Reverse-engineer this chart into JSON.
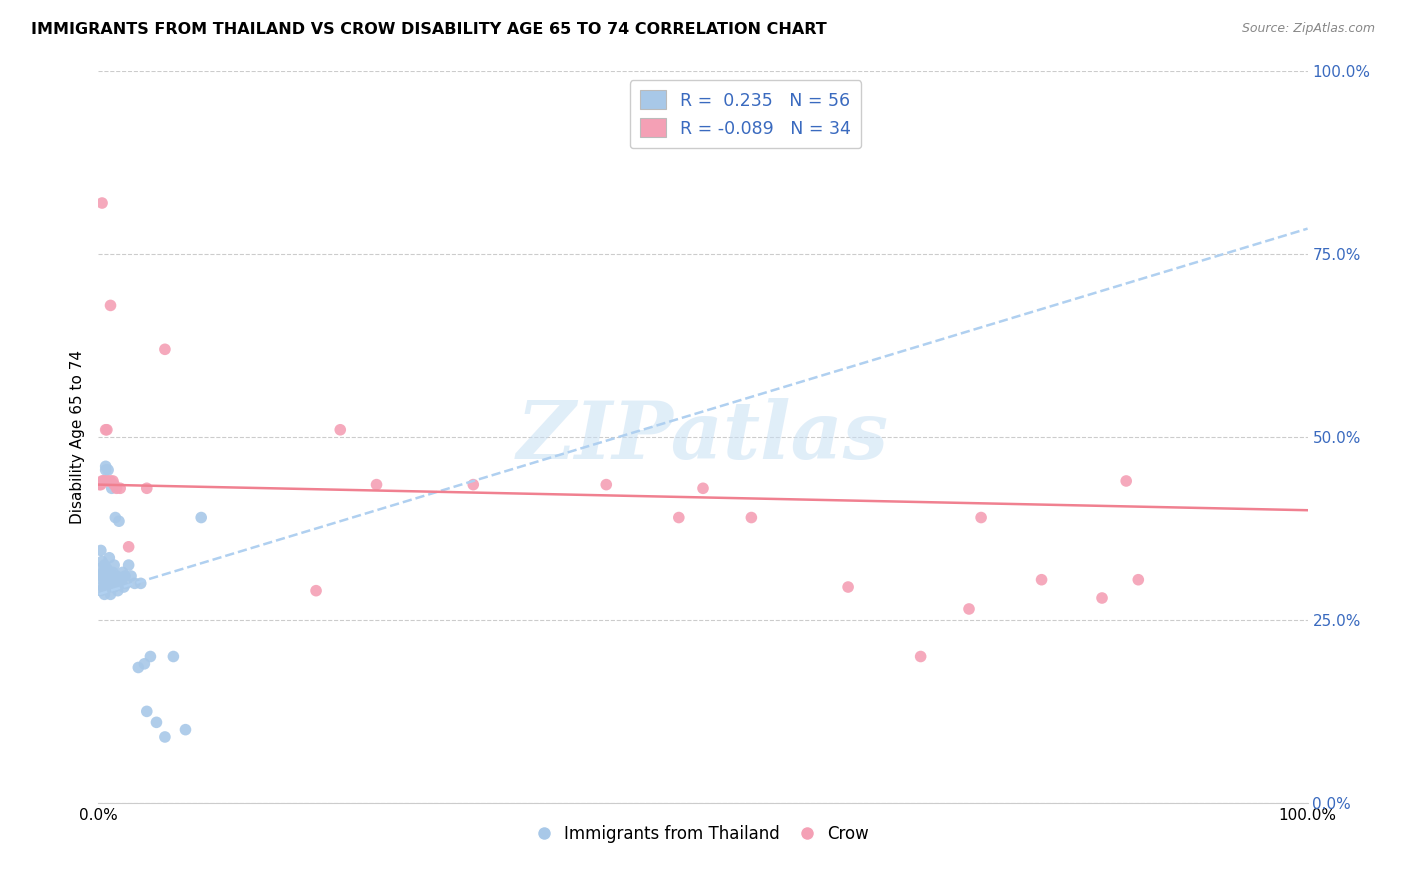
{
  "title": "IMMIGRANTS FROM THAILAND VS CROW DISABILITY AGE 65 TO 74 CORRELATION CHART",
  "source": "Source: ZipAtlas.com",
  "ylabel": "Disability Age 65 to 74",
  "legend_label1": "Immigrants from Thailand",
  "legend_label2": "Crow",
  "R1": 0.235,
  "N1": 56,
  "R2": -0.089,
  "N2": 34,
  "color_blue": "#a8c8e8",
  "color_pink": "#f4a0b5",
  "color_blue_text": "#3a6abf",
  "color_pink_line": "#f08090",
  "color_blue_line": "#b0d0f0",
  "watermark_text": "ZIPatlas",
  "blue_scatter_x": [
    0.001,
    0.002,
    0.002,
    0.003,
    0.003,
    0.003,
    0.004,
    0.004,
    0.005,
    0.005,
    0.005,
    0.005,
    0.006,
    0.006,
    0.006,
    0.007,
    0.007,
    0.007,
    0.008,
    0.008,
    0.009,
    0.009,
    0.009,
    0.01,
    0.01,
    0.01,
    0.011,
    0.011,
    0.012,
    0.012,
    0.013,
    0.013,
    0.014,
    0.015,
    0.015,
    0.016,
    0.017,
    0.018,
    0.019,
    0.02,
    0.021,
    0.022,
    0.023,
    0.025,
    0.027,
    0.03,
    0.033,
    0.035,
    0.038,
    0.04,
    0.043,
    0.048,
    0.055,
    0.062,
    0.072,
    0.085
  ],
  "blue_scatter_y": [
    0.32,
    0.29,
    0.345,
    0.305,
    0.33,
    0.31,
    0.295,
    0.315,
    0.3,
    0.325,
    0.31,
    0.285,
    0.455,
    0.44,
    0.46,
    0.305,
    0.32,
    0.3,
    0.455,
    0.31,
    0.335,
    0.295,
    0.31,
    0.3,
    0.285,
    0.315,
    0.43,
    0.305,
    0.3,
    0.315,
    0.295,
    0.325,
    0.39,
    0.305,
    0.31,
    0.29,
    0.385,
    0.305,
    0.3,
    0.315,
    0.295,
    0.31,
    0.3,
    0.325,
    0.31,
    0.3,
    0.185,
    0.3,
    0.19,
    0.125,
    0.2,
    0.11,
    0.09,
    0.2,
    0.1,
    0.39
  ],
  "pink_scatter_x": [
    0.001,
    0.002,
    0.003,
    0.003,
    0.004,
    0.005,
    0.006,
    0.007,
    0.008,
    0.01,
    0.012,
    0.015,
    0.018,
    0.04,
    0.055,
    0.2,
    0.23,
    0.31,
    0.42,
    0.5,
    0.54,
    0.62,
    0.68,
    0.72,
    0.78,
    0.83,
    0.86,
    0.01,
    0.013,
    0.025,
    0.18,
    0.48,
    0.73,
    0.85
  ],
  "pink_scatter_y": [
    0.435,
    0.435,
    0.44,
    0.82,
    0.44,
    0.44,
    0.51,
    0.51,
    0.44,
    0.44,
    0.44,
    0.43,
    0.43,
    0.43,
    0.62,
    0.51,
    0.435,
    0.435,
    0.435,
    0.43,
    0.39,
    0.295,
    0.2,
    0.265,
    0.305,
    0.28,
    0.305,
    0.68,
    0.435,
    0.35,
    0.29,
    0.39,
    0.39,
    0.44
  ],
  "blue_trendline_x": [
    0.0,
    1.0
  ],
  "blue_trendline_y": [
    0.285,
    0.785
  ],
  "pink_trendline_x": [
    0.0,
    1.0
  ],
  "pink_trendline_y": [
    0.435,
    0.4
  ],
  "xlim": [
    0,
    1.0
  ],
  "ylim": [
    0,
    1.0
  ],
  "yticks": [
    0.0,
    0.25,
    0.5,
    0.75,
    1.0
  ],
  "ytick_labels": [
    "0.0%",
    "25.0%",
    "50.0%",
    "75.0%",
    "100.0%"
  ],
  "xtick_labels_show": [
    "0.0%",
    "100.0%"
  ]
}
